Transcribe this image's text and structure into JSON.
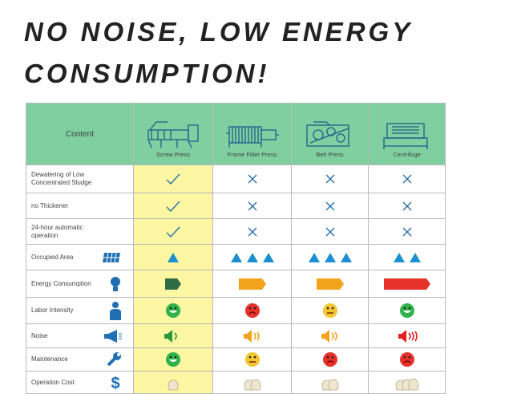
{
  "title": "NO NOISE, LOW ENERGY CONSUMPTION!",
  "table": {
    "header": [
      "Content",
      "Screw Press",
      "Frame Filter Press",
      "Belt Press",
      "Centrifuge"
    ],
    "rows": [
      "Dewatering of Low Concentrated Sludge",
      "no Thickener",
      "24-hour automatic operation",
      "Occupied Area",
      "Energy Consumption",
      "Labor Intensity",
      "Noise",
      "Maintenance",
      "Operation Cost"
    ]
  }
}
